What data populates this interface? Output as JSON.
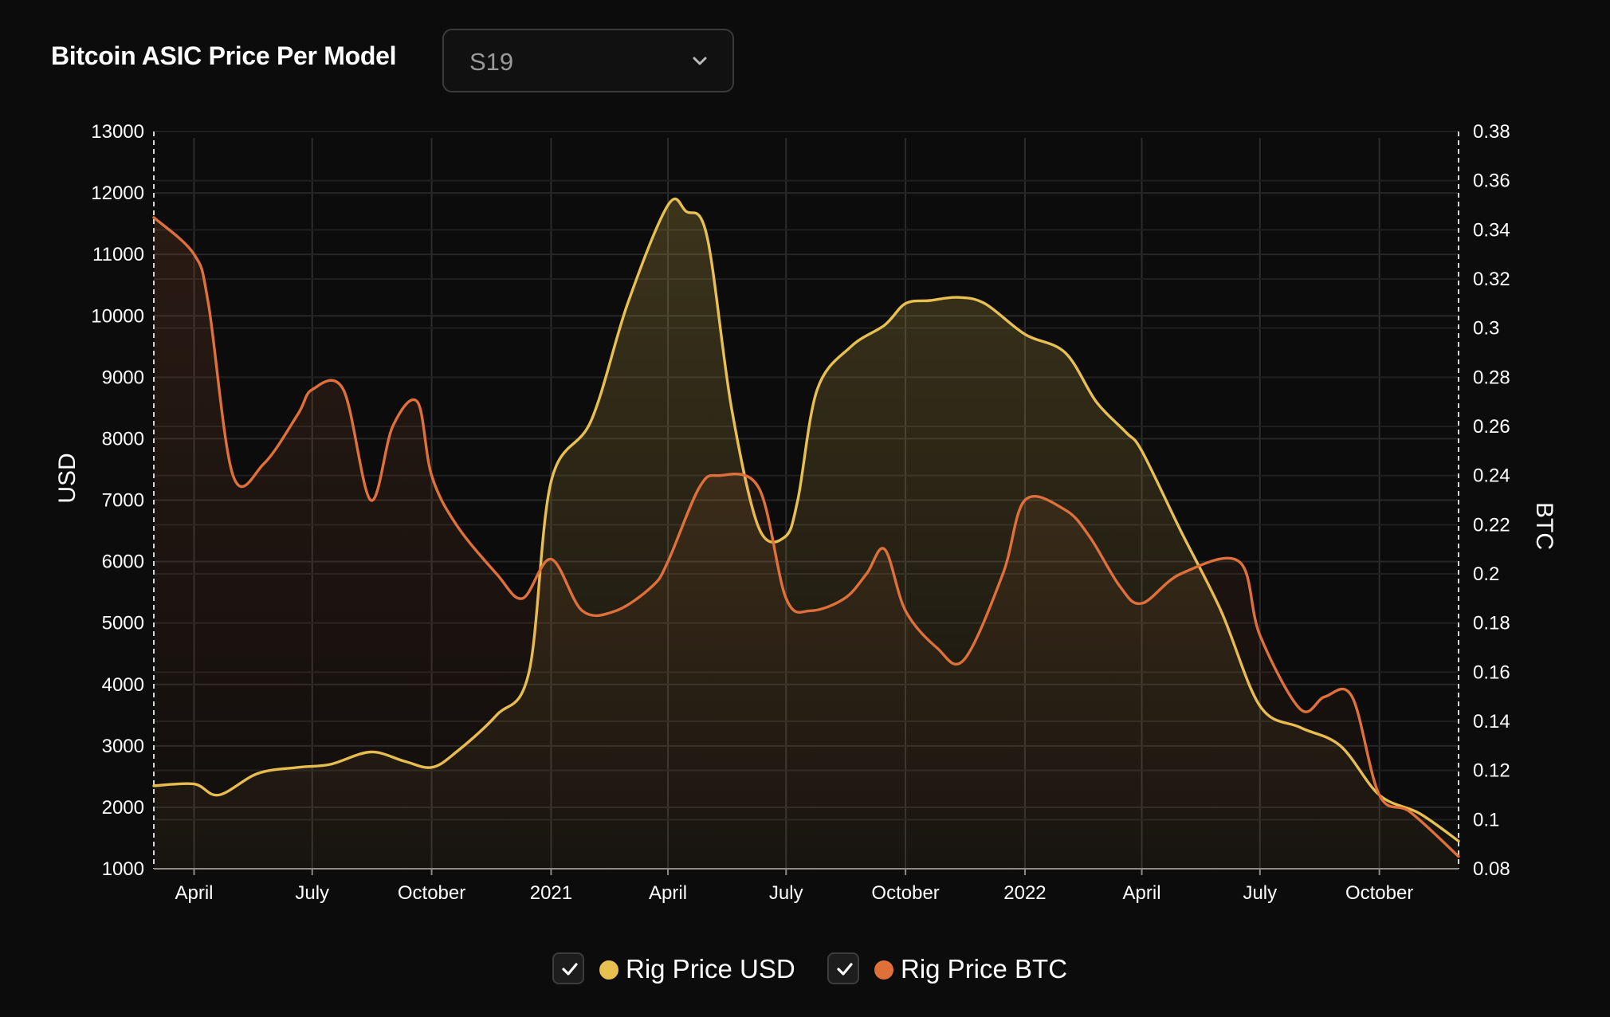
{
  "title": "Bitcoin ASIC Price Per Model",
  "model_select": {
    "value": "S19",
    "icon": "chevron-down-icon"
  },
  "legend": [
    {
      "label": "Rig Price USD",
      "color": "#e8c050",
      "checked": true,
      "icon": "check-icon"
    },
    {
      "label": "Rig Price BTC",
      "color": "#e0703a",
      "checked": true,
      "icon": "check-icon"
    }
  ],
  "chart_data": {
    "type": "area",
    "ylabel_left": "USD",
    "ylabel_right": "BTC",
    "x_tick_labels": [
      "April",
      "July",
      "October",
      "2021",
      "April",
      "July",
      "October",
      "2022",
      "April",
      "July",
      "October"
    ],
    "x_tick_dates": [
      "2020-04-01",
      "2020-07-01",
      "2020-10-01",
      "2021-01-01",
      "2021-04-01",
      "2021-07-01",
      "2021-10-01",
      "2022-01-01",
      "2022-04-01",
      "2022-07-01",
      "2022-10-01"
    ],
    "xlim": [
      "2020-03-01",
      "2022-12-01"
    ],
    "y_left_ticks": [
      1000,
      2000,
      3000,
      4000,
      5000,
      6000,
      7000,
      8000,
      9000,
      10000,
      11000,
      12000,
      13000
    ],
    "y_left_lim": [
      1000,
      13000
    ],
    "y_right_ticks": [
      "0.08",
      "0.1",
      "0.12",
      "0.14",
      "0.16",
      "0.18",
      "0.2",
      "0.22",
      "0.24",
      "0.26",
      "0.28",
      "0.3",
      "0.32",
      "0.34",
      "0.36",
      "0.38"
    ],
    "y_right_lim": [
      0.08,
      0.38
    ],
    "grid": true,
    "legend_position": "bottom-center",
    "series": [
      {
        "name": "Rig Price USD",
        "axis": "left",
        "color": "#e8c050",
        "x": [
          "2020-03-01",
          "2020-04-01",
          "2020-04-20",
          "2020-05-20",
          "2020-06-20",
          "2020-07-15",
          "2020-08-15",
          "2020-09-10",
          "2020-10-01",
          "2020-10-20",
          "2020-11-20",
          "2020-12-15",
          "2021-01-01",
          "2021-02-01",
          "2021-03-01",
          "2021-04-01",
          "2021-04-15",
          "2021-05-01",
          "2021-05-20",
          "2021-06-10",
          "2021-06-30",
          "2021-07-10",
          "2021-07-25",
          "2021-08-20",
          "2021-09-15",
          "2021-10-01",
          "2021-10-20",
          "2021-11-10",
          "2021-12-01",
          "2022-01-01",
          "2022-02-01",
          "2022-02-25",
          "2022-03-20",
          "2022-04-01",
          "2022-05-01",
          "2022-06-01",
          "2022-07-01",
          "2022-08-01",
          "2022-09-01",
          "2022-10-01",
          "2022-11-01",
          "2022-12-01"
        ],
        "y": [
          2350,
          2380,
          2200,
          2550,
          2650,
          2700,
          2900,
          2750,
          2650,
          2900,
          3500,
          4200,
          7300,
          8300,
          10200,
          11800,
          11700,
          11300,
          8500,
          6550,
          6400,
          7000,
          8800,
          9500,
          9850,
          10200,
          10250,
          10300,
          10200,
          9700,
          9400,
          8600,
          8100,
          7800,
          6500,
          5200,
          3650,
          3300,
          3000,
          2200,
          1900,
          1450
        ]
      },
      {
        "name": "Rig Price BTC",
        "axis": "right",
        "color": "#e0703a",
        "x": [
          "2020-03-01",
          "2020-04-01",
          "2020-04-12",
          "2020-05-01",
          "2020-05-25",
          "2020-06-20",
          "2020-07-01",
          "2020-07-25",
          "2020-08-15",
          "2020-09-01",
          "2020-09-20",
          "2020-10-01",
          "2020-10-20",
          "2020-11-20",
          "2020-12-10",
          "2021-01-01",
          "2021-01-25",
          "2021-02-20",
          "2021-03-20",
          "2021-04-01",
          "2021-04-25",
          "2021-05-10",
          "2021-06-10",
          "2021-07-01",
          "2021-07-20",
          "2021-08-15",
          "2021-09-01",
          "2021-09-15",
          "2021-10-01",
          "2021-10-25",
          "2021-11-15",
          "2021-12-15",
          "2022-01-01",
          "2022-02-01",
          "2022-02-20",
          "2022-03-15",
          "2022-04-01",
          "2022-05-01",
          "2022-06-15",
          "2022-07-01",
          "2022-08-01",
          "2022-08-20",
          "2022-09-10",
          "2022-10-01",
          "2022-10-25",
          "2022-12-01"
        ],
        "y": [
          0.345,
          0.33,
          0.31,
          0.24,
          0.245,
          0.265,
          0.275,
          0.275,
          0.23,
          0.26,
          0.27,
          0.24,
          0.22,
          0.2,
          0.19,
          0.206,
          0.185,
          0.185,
          0.195,
          0.205,
          0.235,
          0.24,
          0.235,
          0.19,
          0.185,
          0.19,
          0.2,
          0.21,
          0.185,
          0.17,
          0.165,
          0.2,
          0.23,
          0.226,
          0.215,
          0.195,
          0.188,
          0.2,
          0.205,
          0.175,
          0.145,
          0.15,
          0.15,
          0.11,
          0.103,
          0.085
        ]
      }
    ]
  }
}
